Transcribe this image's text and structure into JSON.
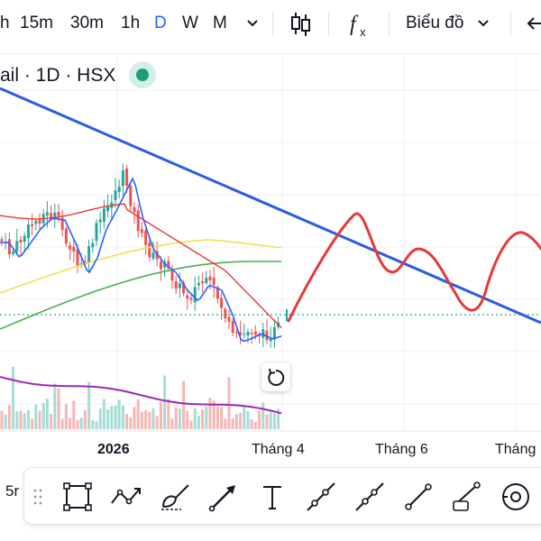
{
  "toolbar": {
    "intervals": [
      "h",
      "15m",
      "30m",
      "1h",
      "D",
      "W",
      "M"
    ],
    "active_interval": "D",
    "more_icon": "chevron-down-icon",
    "chart_type_icon": "candles-icon",
    "indicators_icon": "fx-icon",
    "layout_label": "Biểu đồ",
    "layout_icon": "chevron-down-icon",
    "back_icon": "arrow-left-icon"
  },
  "legend": {
    "text": "ail · 1D · HSX",
    "status_color": "#1a9e7a"
  },
  "chart": {
    "x_labels": [
      "2026",
      "Tháng 4",
      "Tháng 6",
      "Tháng"
    ],
    "reset_icon": "refresh-icon",
    "colors": {
      "up": "#26a69a",
      "down": "#ef5350",
      "trendline": "#2d5be3",
      "drawing": "#e53935",
      "ma_fast": "#2962ff",
      "ma_mid": "#e53935",
      "ma_slow": "#f4e04d",
      "ma_long": "#4caf50",
      "volume_avg": "#9c27b0",
      "price_line": "#26a69a"
    }
  },
  "drawing_toolbar": {
    "left_label": "5r",
    "tools": [
      "rectangle-icon",
      "path-icon",
      "brush-icon",
      "arrow-icon",
      "text-icon",
      "ray-icon",
      "trend-line-icon",
      "line-icon",
      "info-line-icon",
      "cursor-icon"
    ]
  }
}
